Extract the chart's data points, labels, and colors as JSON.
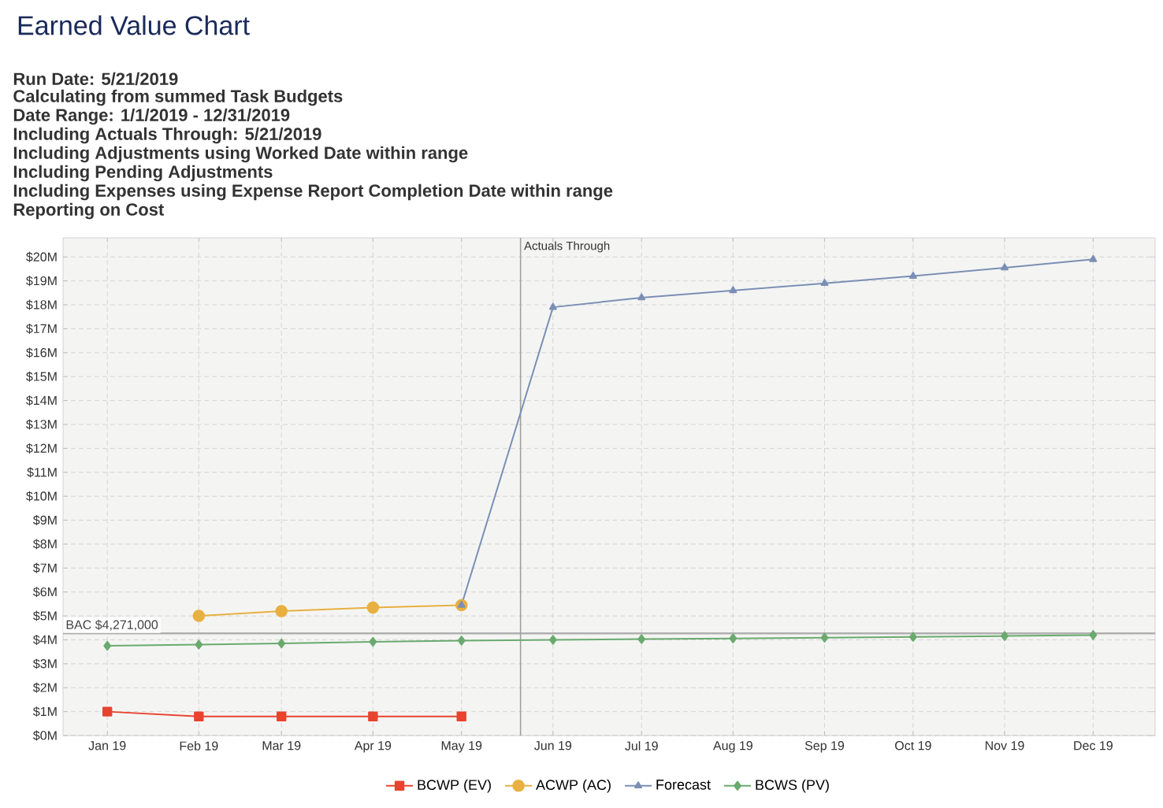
{
  "chart_data": {
    "type": "line",
    "title": "Earned Value Chart",
    "annotations": [
      "Run Date: 5/21/2019",
      "Calculating from summed Task Budgets",
      "Date Range: 1/1/2019 - 12/31/2019",
      "Including Actuals Through: 5/21/2019",
      "Including Adjustments using Worked Date within range",
      "Including Pending Adjustments",
      "Including Expenses using Expense Report Completion Date within range",
      "Reporting on Cost"
    ],
    "x": [
      "2019-01-01",
      "2019-02-01",
      "2019-03-01",
      "2019-04-01",
      "2019-05-01",
      "2019-06-01",
      "2019-07-01",
      "2019-08-01",
      "2019-09-01",
      "2019-10-01",
      "2019-11-01",
      "2019-12-01"
    ],
    "xlim": [
      "2018-12-17",
      "2019-12-22"
    ],
    "xticks": [
      {
        "value": "2019-01-01",
        "label": "Jan 19"
      },
      {
        "value": "2019-02-01",
        "label": "Feb 19"
      },
      {
        "value": "2019-03-01",
        "label": "Mar 19"
      },
      {
        "value": "2019-04-01",
        "label": "Apr 19"
      },
      {
        "value": "2019-05-01",
        "label": "May 19"
      },
      {
        "value": "2019-06-01",
        "label": "Jun 19"
      },
      {
        "value": "2019-07-01",
        "label": "Jul 19"
      },
      {
        "value": "2019-08-01",
        "label": "Aug 19"
      },
      {
        "value": "2019-09-01",
        "label": "Sep 19"
      },
      {
        "value": "2019-10-01",
        "label": "Oct 19"
      },
      {
        "value": "2019-11-01",
        "label": "Nov 19"
      },
      {
        "value": "2019-12-01",
        "label": "Dec 19"
      }
    ],
    "series": [
      {
        "name": "BCWP (EV)",
        "color": "#e8432e",
        "marker": "square",
        "values": [
          1.0,
          0.8,
          0.8,
          0.8,
          0.8,
          null,
          null,
          null,
          null,
          null,
          null,
          null
        ]
      },
      {
        "name": "ACWP (AC)",
        "color": "#e8b040",
        "marker": "circle",
        "values": [
          null,
          5.0,
          5.2,
          5.35,
          5.45,
          null,
          null,
          null,
          null,
          null,
          null,
          null
        ]
      },
      {
        "name": "Forecast",
        "color": "#7b8fb5",
        "marker": "triangle",
        "values": [
          null,
          null,
          null,
          null,
          5.45,
          17.9,
          18.3,
          18.6,
          18.9,
          19.2,
          19.55,
          19.9
        ]
      },
      {
        "name": "BCWS (PV)",
        "color": "#6aaa6e",
        "marker": "diamond",
        "values": [
          3.75,
          3.8,
          3.85,
          3.92,
          3.97,
          4.0,
          4.03,
          4.06,
          4.09,
          4.12,
          4.16,
          4.2
        ]
      }
    ],
    "ylim": [
      0,
      20.8
    ],
    "yticks": [
      {
        "value": 0,
        "label": "$0M"
      },
      {
        "value": 1,
        "label": "$1M"
      },
      {
        "value": 2,
        "label": "$2M"
      },
      {
        "value": 3,
        "label": "$3M"
      },
      {
        "value": 4,
        "label": "$4M"
      },
      {
        "value": 5,
        "label": "$5M"
      },
      {
        "value": 6,
        "label": "$6M"
      },
      {
        "value": 7,
        "label": "$7M"
      },
      {
        "value": 8,
        "label": "$8M"
      },
      {
        "value": 9,
        "label": "$9M"
      },
      {
        "value": 10,
        "label": "$10M"
      },
      {
        "value": 11,
        "label": "$11M"
      },
      {
        "value": 12,
        "label": "$12M"
      },
      {
        "value": 13,
        "label": "$13M"
      },
      {
        "value": 14,
        "label": "$14M"
      },
      {
        "value": 15,
        "label": "$15M"
      },
      {
        "value": 16,
        "label": "$16M"
      },
      {
        "value": 17,
        "label": "$17M"
      },
      {
        "value": 18,
        "label": "$18M"
      },
      {
        "value": 19,
        "label": "$19M"
      },
      {
        "value": 20,
        "label": "$20M"
      }
    ],
    "ref_lines": [
      {
        "axis": "y",
        "value": 4.271,
        "label": "BAC $4,271,000",
        "color": "#b0b0b0"
      },
      {
        "axis": "x",
        "value": "2019-05-21",
        "label": "Actuals Through",
        "color": "#a0a0a0"
      }
    ],
    "grid": true,
    "legend": "bottom",
    "line_style": "solid"
  }
}
